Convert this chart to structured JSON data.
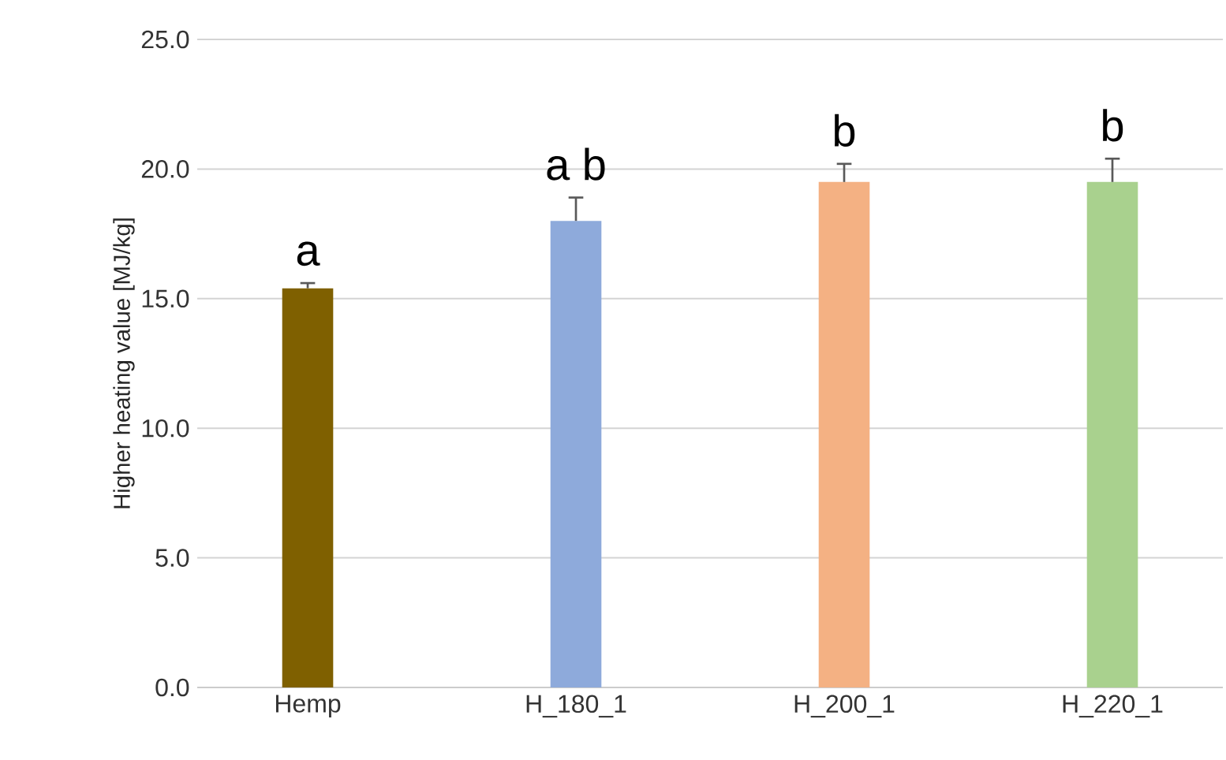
{
  "chart_data": {
    "type": "bar",
    "ylabel": "Higher heating value [MJ/kg]",
    "categories": [
      "Hemp",
      "H_180_1",
      "H_200_1",
      "H_220_1"
    ],
    "values": [
      15.4,
      18.0,
      19.5,
      19.5
    ],
    "errors": [
      [
        15.4,
        15.6
      ],
      [
        18.0,
        18.9
      ],
      [
        19.5,
        20.2
      ],
      [
        19.5,
        20.4
      ]
    ],
    "colors": [
      "#7f6000",
      "#8eaadb",
      "#f4b183",
      "#a9d18e"
    ],
    "ylim": [
      0,
      25
    ],
    "yticks": [
      {
        "value": 0,
        "label": "0.0"
      },
      {
        "value": 5,
        "label": "5.0"
      },
      {
        "value": 10,
        "label": "10.0"
      },
      {
        "value": 15,
        "label": "15.0"
      },
      {
        "value": 20,
        "label": "20.0"
      },
      {
        "value": 25,
        "label": "25.0"
      }
    ],
    "grid": "y",
    "legend": false,
    "annotations": [
      "a",
      "a b",
      "b",
      "b"
    ]
  }
}
